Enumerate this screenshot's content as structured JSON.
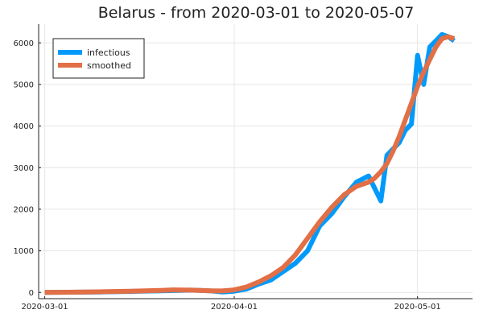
{
  "chart_data": {
    "type": "line",
    "title": "Belarus - from 2020-03-01 to 2020-05-07",
    "xlabel": "",
    "ylabel": "",
    "x_start": "2020-03-01",
    "xlim": [
      "2020-02-29",
      "2020-05-10"
    ],
    "ylim": [
      -150,
      6450
    ],
    "grid": true,
    "legend_position": "top-left",
    "x_ticks": [
      {
        "date": "2020-03-01",
        "label": "2020-03-01"
      },
      {
        "date": "2020-04-01",
        "label": "2020-04-01"
      },
      {
        "date": "2020-05-01",
        "label": "2020-05-01"
      }
    ],
    "y_ticks": [
      0,
      1000,
      2000,
      3000,
      4000,
      5000,
      6000
    ],
    "series": [
      {
        "name": "infectious",
        "color": "#009AFA",
        "points": [
          [
            "2020-03-01",
            0
          ],
          [
            "2020-03-05",
            5
          ],
          [
            "2020-03-10",
            10
          ],
          [
            "2020-03-15",
            25
          ],
          [
            "2020-03-20",
            40
          ],
          [
            "2020-03-25",
            55
          ],
          [
            "2020-03-28",
            40
          ],
          [
            "2020-03-30",
            10
          ],
          [
            "2020-04-01",
            30
          ],
          [
            "2020-04-03",
            80
          ],
          [
            "2020-04-05",
            200
          ],
          [
            "2020-04-07",
            300
          ],
          [
            "2020-04-09",
            500
          ],
          [
            "2020-04-11",
            700
          ],
          [
            "2020-04-13",
            1000
          ],
          [
            "2020-04-15",
            1600
          ],
          [
            "2020-04-17",
            1900
          ],
          [
            "2020-04-19",
            2300
          ],
          [
            "2020-04-21",
            2650
          ],
          [
            "2020-04-23",
            2800
          ],
          [
            "2020-04-24",
            2500
          ],
          [
            "2020-04-25",
            2200
          ],
          [
            "2020-04-26",
            3300
          ],
          [
            "2020-04-27",
            3450
          ],
          [
            "2020-04-28",
            3600
          ],
          [
            "2020-04-29",
            3900
          ],
          [
            "2020-04-30",
            4050
          ],
          [
            "2020-05-01",
            5700
          ],
          [
            "2020-05-02",
            5000
          ],
          [
            "2020-05-03",
            5900
          ],
          [
            "2020-05-04",
            6050
          ],
          [
            "2020-05-05",
            6200
          ],
          [
            "2020-05-06",
            6150
          ],
          [
            "2020-05-07",
            6050
          ]
        ]
      },
      {
        "name": "smoothed",
        "color": "#E26F46",
        "points": [
          [
            "2020-03-01",
            0
          ],
          [
            "2020-03-05",
            5
          ],
          [
            "2020-03-10",
            15
          ],
          [
            "2020-03-15",
            30
          ],
          [
            "2020-03-20",
            50
          ],
          [
            "2020-03-22",
            60
          ],
          [
            "2020-03-25",
            55
          ],
          [
            "2020-03-28",
            40
          ],
          [
            "2020-03-30",
            35
          ],
          [
            "2020-04-01",
            60
          ],
          [
            "2020-04-03",
            130
          ],
          [
            "2020-04-05",
            250
          ],
          [
            "2020-04-07",
            400
          ],
          [
            "2020-04-09",
            600
          ],
          [
            "2020-04-11",
            900
          ],
          [
            "2020-04-13",
            1300
          ],
          [
            "2020-04-15",
            1700
          ],
          [
            "2020-04-17",
            2050
          ],
          [
            "2020-04-19",
            2350
          ],
          [
            "2020-04-21",
            2550
          ],
          [
            "2020-04-23",
            2650
          ],
          [
            "2020-04-24",
            2750
          ],
          [
            "2020-04-25",
            2900
          ],
          [
            "2020-04-26",
            3100
          ],
          [
            "2020-04-27",
            3400
          ],
          [
            "2020-04-28",
            3750
          ],
          [
            "2020-04-29",
            4150
          ],
          [
            "2020-04-30",
            4550
          ],
          [
            "2020-05-01",
            4950
          ],
          [
            "2020-05-02",
            5300
          ],
          [
            "2020-05-03",
            5600
          ],
          [
            "2020-05-04",
            5900
          ],
          [
            "2020-05-05",
            6100
          ],
          [
            "2020-05-06",
            6150
          ],
          [
            "2020-05-07",
            6100
          ]
        ]
      }
    ]
  }
}
